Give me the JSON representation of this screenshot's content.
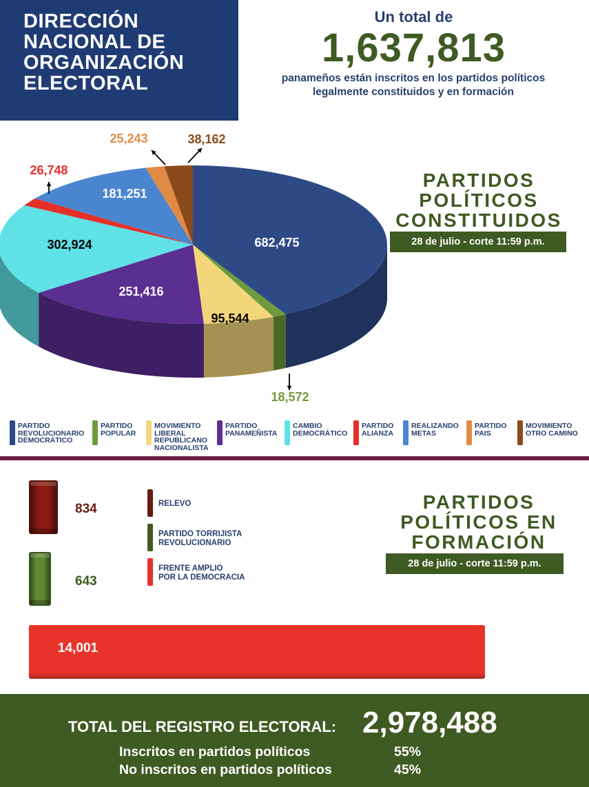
{
  "header": {
    "title": "DIRECCIÓN\nNACIONAL DE\nORGANIZACIÓN\nELECTORAL",
    "total_intro": "Un total de",
    "total_value": "1,637,813",
    "total_sub": "panameños están inscritos en los partidos políticos\nlegalmente constituidos y en formación"
  },
  "constituted": {
    "title": "PARTIDOS\nPOLÍTICOS\nCONSTITUIDOS",
    "date": "28 de julio - corte 11:59 p.m."
  },
  "forming": {
    "title": "PARTIDOS\nPOLÍTICOS EN\nFORMACIÓN",
    "date": "28 de julio - corte 11:59 p.m."
  },
  "chart_data": [
    {
      "type": "pie",
      "title": "",
      "slices": [
        {
          "label": "PARTIDO REVOLUCIONARIO DEMOCRÁTICO",
          "value": 682475,
          "display": "682,475",
          "color": "#2e4a86"
        },
        {
          "label": "PARTIDO POPULAR",
          "value": 18572,
          "display": "18,572",
          "color": "#6d9a3d"
        },
        {
          "label": "MOVIMIENTO LIBERAL REPUBLICANO NACIONALISTA",
          "value": 95544,
          "display": "95,544",
          "color": "#f3d67a"
        },
        {
          "label": "PARTIDO PANAMEÑISTA",
          "value": 251416,
          "display": "251,416",
          "color": "#5b2e91"
        },
        {
          "label": "CAMBIO DEMOCRÁTICO",
          "value": 302924,
          "display": "302,924",
          "color": "#5fe1e6"
        },
        {
          "label": "PARTIDO ALIANZA",
          "value": 26748,
          "display": "26,748",
          "color": "#e5302a"
        },
        {
          "label": "REALIZANDO METAS",
          "value": 181251,
          "display": "181,251",
          "color": "#4a86cf"
        },
        {
          "label": "PARTIDO PAIS",
          "value": 25243,
          "display": "25,243",
          "color": "#e08a45"
        },
        {
          "label": "MOVIMIENTO OTRO CAMINO",
          "value": 38162,
          "display": "38,162",
          "color": "#8a4a1c"
        }
      ]
    },
    {
      "type": "bar",
      "title": "",
      "categories": [
        "RELEVO",
        "PARTIDO TORRIJISTA REVOLUCIONARIO",
        "FRENTE AMPLIO POR LA DEMOCRACIA"
      ],
      "values": [
        834,
        643,
        14001
      ],
      "displays": [
        "834",
        "643",
        "14,001"
      ],
      "colors": [
        "#8a1a12",
        "#5e8a32",
        "#e8332a"
      ],
      "value_colors": [
        "#6a1a12",
        "#3f5a22",
        "#ffffff"
      ]
    }
  ],
  "legend_constituted": [
    {
      "text": "PARTIDO\nREVOLUCIONARIO\nDEMOCRÁTICO",
      "color": "#2e4a86"
    },
    {
      "text": "PARTIDO\nPOPULAR",
      "color": "#6d9a3d"
    },
    {
      "text": "MOVIMIENTO\nLIBERAL\nREPUBLICANO\nNACIONALISTA",
      "color": "#f3d67a"
    },
    {
      "text": "PARTIDO\nPANAMEÑISTA",
      "color": "#5b2e91"
    },
    {
      "text": "CAMBIO\nDEMOCRÁTICO",
      "color": "#5fe1e6"
    },
    {
      "text": "PARTIDO\nALIANZA",
      "color": "#e5302a"
    },
    {
      "text": "REALIZANDO\nMETAS",
      "color": "#4a86cf"
    },
    {
      "text": "PARTIDO\nPAIS",
      "color": "#e08a45"
    },
    {
      "text": "MOVIMIENTO\nOTRO CAMINO",
      "color": "#8a4a1c"
    }
  ],
  "legend_forming": [
    {
      "text": "RELEVO",
      "color": "#6a1a12"
    },
    {
      "text": "PARTIDO TORRIJISTA\nREVOLUCIONARIO",
      "color": "#3f5a22"
    },
    {
      "text": "FRENTE AMPLIO\nPOR LA DEMOCRACIA",
      "color": "#e5302a"
    }
  ],
  "footer": {
    "label": "TOTAL DEL REGISTRO ELECTORAL:",
    "value": "2,978,488",
    "rows": [
      {
        "label": "Inscritos en partidos políticos",
        "pct": "55%"
      },
      {
        "label": "No inscritos en partidos políticos",
        "pct": "45%"
      }
    ]
  }
}
